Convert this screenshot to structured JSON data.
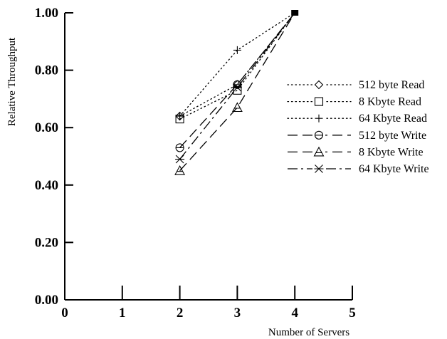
{
  "chart_data": {
    "type": "line",
    "title": "",
    "xlabel": "Number of Servers",
    "ylabel": "Relative Throughput",
    "xlim": [
      0,
      5
    ],
    "ylim": [
      0,
      1
    ],
    "x_ticks": [
      0,
      1,
      2,
      3,
      4,
      5
    ],
    "x_tick_labels": [
      "0",
      "1",
      "2",
      "3",
      "4",
      "5"
    ],
    "y_ticks": [
      0,
      0.2,
      0.4,
      0.6,
      0.8,
      1.0
    ],
    "y_tick_labels": [
      "0.00",
      "0.20",
      "0.40",
      "0.60",
      "0.80",
      "1.00"
    ],
    "grid": false,
    "legend_position": "right",
    "series": [
      {
        "name": "512 byte Read",
        "x": [
          2,
          3,
          4
        ],
        "values": [
          0.64,
          0.75,
          1.0
        ],
        "line_style": "dotted",
        "marker": "diamond"
      },
      {
        "name": "8 Kbyte Read",
        "x": [
          2,
          3,
          4
        ],
        "values": [
          0.63,
          0.73,
          1.0
        ],
        "line_style": "dotted",
        "marker": "square"
      },
      {
        "name": "64 Kbyte Read",
        "x": [
          2,
          3,
          4
        ],
        "values": [
          0.64,
          0.87,
          1.0
        ],
        "line_style": "dotted",
        "marker": "plus"
      },
      {
        "name": "512 byte Write",
        "x": [
          2,
          3,
          4
        ],
        "values": [
          0.53,
          0.75,
          1.0
        ],
        "line_style": "dashed",
        "marker": "circle"
      },
      {
        "name": "8 Kbyte Write",
        "x": [
          2,
          3,
          4
        ],
        "values": [
          0.45,
          0.67,
          1.0
        ],
        "line_style": "dashed",
        "marker": "triangle"
      },
      {
        "name": "64 Kbyte Write",
        "x": [
          2,
          3,
          4
        ],
        "values": [
          0.49,
          0.74,
          1.0
        ],
        "line_style": "dashdot",
        "marker": "asterisk"
      }
    ]
  }
}
